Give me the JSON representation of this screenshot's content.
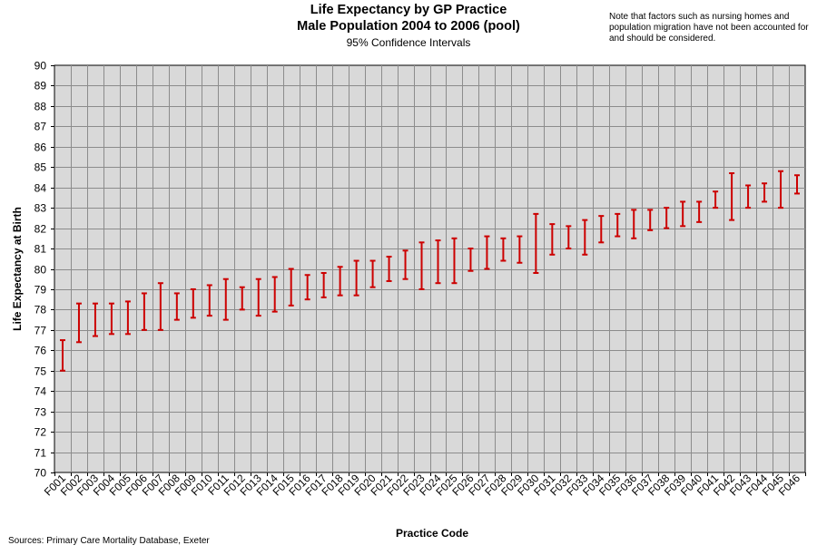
{
  "header": {
    "title_line1": "Life Expectancy by GP Practice",
    "title_line2": "Male Population 2004 to 2006 (pool)",
    "subtitle": "95% Confidence  Intervals"
  },
  "note": "Note that factors such as nursing homes and population migration  have not been accounted for and should be considered.",
  "source": "Sources: Primary Care Mortality Database, Exeter",
  "chart_data": {
    "type": "errorbar",
    "title": "Life Expectancy by GP Practice",
    "subtitle": "Male Population 2004 to 2006 (pool)",
    "xlabel": "Practice Code",
    "ylabel": "Life Expectancy at Birth",
    "ylim": [
      70,
      90
    ],
    "ytick_step": 1,
    "grid": true,
    "bar_color": "#cc0000",
    "plot_background": "#d9d9d9",
    "categories": [
      "F001",
      "F002",
      "F003",
      "F004",
      "F005",
      "F006",
      "F007",
      "F008",
      "F009",
      "F010",
      "F011",
      "F012",
      "F013",
      "F014",
      "F015",
      "F016",
      "F017",
      "F018",
      "F019",
      "F020",
      "F021",
      "F022",
      "F023",
      "F024",
      "F025",
      "F026",
      "F027",
      "F028",
      "F029",
      "F030",
      "F031",
      "F032",
      "F033",
      "F034",
      "F035",
      "F036",
      "F037",
      "F038",
      "F039",
      "F040",
      "F041",
      "F042",
      "F043",
      "F044",
      "F045",
      "F046"
    ],
    "lower": [
      75.0,
      76.4,
      76.7,
      76.8,
      76.8,
      77.0,
      77.0,
      77.5,
      77.6,
      77.7,
      77.5,
      78.0,
      77.7,
      77.9,
      78.2,
      78.5,
      78.6,
      78.7,
      78.7,
      79.1,
      79.4,
      79.5,
      79.0,
      79.3,
      79.3,
      79.9,
      80.0,
      80.4,
      80.3,
      79.8,
      80.7,
      81.0,
      80.7,
      81.3,
      81.6,
      81.5,
      81.9,
      82.0,
      82.1,
      82.3,
      83.0,
      82.4,
      83.0,
      83.3,
      83.0,
      83.7
    ],
    "upper": [
      76.5,
      78.3,
      78.3,
      78.3,
      78.4,
      78.8,
      79.3,
      78.8,
      79.0,
      79.2,
      79.5,
      79.1,
      79.5,
      79.6,
      80.0,
      79.7,
      79.8,
      80.1,
      80.4,
      80.4,
      80.6,
      80.9,
      81.3,
      81.4,
      81.5,
      81.0,
      81.6,
      81.5,
      81.6,
      82.7,
      82.2,
      82.1,
      82.4,
      82.6,
      82.7,
      82.9,
      82.9,
      83.0,
      83.3,
      83.3,
      83.8,
      84.7,
      84.1,
      84.2,
      84.8,
      84.6
    ]
  }
}
